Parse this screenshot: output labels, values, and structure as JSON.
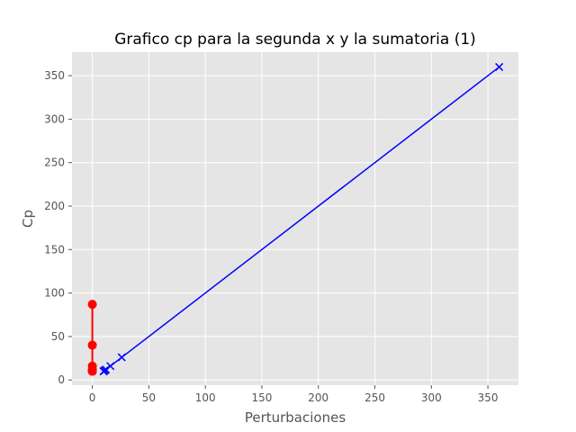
{
  "chart_data": {
    "type": "line",
    "title": "Grafico cp para la segunda x y la sumatoria (1)",
    "xlabel": "Perturbaciones",
    "ylabel": "Cp",
    "xlim": [
      -18,
      377
    ],
    "ylim": [
      -6,
      377
    ],
    "xticks": [
      0,
      50,
      100,
      150,
      200,
      250,
      300,
      350
    ],
    "yticks": [
      0,
      50,
      100,
      150,
      200,
      250,
      300,
      350
    ],
    "grid": true,
    "background": "#e5e5e5",
    "series": [
      {
        "marker": "o",
        "color": "#ff0000",
        "line_width": 2,
        "x": [
          0,
          0,
          0,
          0,
          0,
          0,
          0
        ],
        "y": [
          87,
          40,
          16,
          12,
          11,
          10,
          10
        ]
      },
      {
        "marker": "x",
        "color": "#0000ff",
        "line_width": 1.5,
        "x": [
          360,
          26,
          16,
          12,
          11,
          10,
          10
        ],
        "y": [
          360,
          26,
          16,
          12,
          11,
          10,
          10
        ]
      }
    ]
  }
}
